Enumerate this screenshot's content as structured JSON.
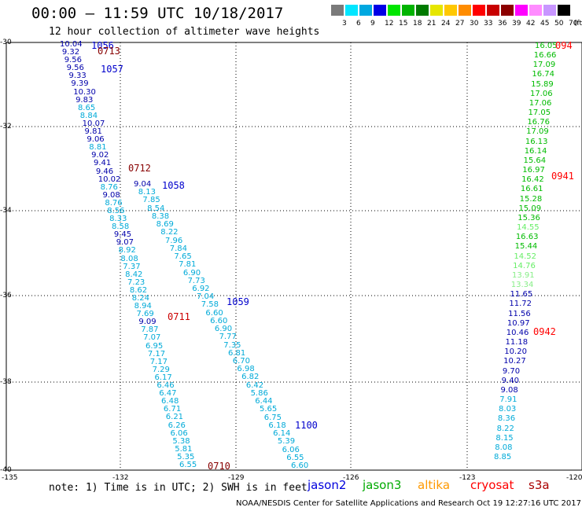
{
  "title": "00:00 – 11:59 UTC 10/18/2017",
  "subtitle": "12 hour collection of altimeter wave heights",
  "legend": {
    "unit": "(ft)",
    "bins": [
      {
        "label": "3",
        "color": "#7a7a7a"
      },
      {
        "label": "6",
        "color": "#00e6ff"
      },
      {
        "label": "9",
        "color": "#00a8e0"
      },
      {
        "label": "12",
        "color": "#0000e6"
      },
      {
        "label": "15",
        "color": "#00e600"
      },
      {
        "label": "18",
        "color": "#00b400"
      },
      {
        "label": "21",
        "color": "#007a00"
      },
      {
        "label": "24",
        "color": "#e6e600"
      },
      {
        "label": "27",
        "color": "#ffc800"
      },
      {
        "label": "30",
        "color": "#ff8c00"
      },
      {
        "label": "33",
        "color": "#ff0000"
      },
      {
        "label": "36",
        "color": "#c80000"
      },
      {
        "label": "39",
        "color": "#8c0000"
      },
      {
        "label": "42",
        "color": "#ff00ff"
      },
      {
        "label": "45",
        "color": "#ff8cff"
      },
      {
        "label": "50",
        "color": "#c896ff"
      },
      {
        "label": "70",
        "color": "#000000"
      }
    ]
  },
  "axes": {
    "lat_ticks": [
      "-30",
      "-32",
      "-34",
      "-36",
      "-38",
      "-40"
    ],
    "lon_ticks": [
      "-135",
      "-132",
      "-129",
      "-126",
      "-123",
      "-120"
    ]
  },
  "note": "note: 1) Time is in UTC; 2) SWH is in feet",
  "satellites": [
    {
      "name": "jason2",
      "color": "#0000dd"
    },
    {
      "name": "jason3",
      "color": "#00aa00"
    },
    {
      "name": "altika",
      "color": "#ff9900"
    },
    {
      "name": "cryosat",
      "color": "#ff0000"
    },
    {
      "name": "s3a",
      "color": "#aa0000"
    }
  ],
  "footer": "NOAA/NESDIS Center for Satellite Applications and Research   Oct 19 12:27:16 UTC 2017",
  "passes": [
    {
      "label": "1056",
      "color": "#0000cc"
    },
    {
      "label": "0713",
      "color": "#880000"
    },
    {
      "label": "1057",
      "color": "#0000cc"
    },
    {
      "label": "0712",
      "color": "#880000"
    },
    {
      "label": "1058",
      "color": "#0000cc"
    },
    {
      "label": "1059",
      "color": "#0000cc"
    },
    {
      "label": "0711",
      "color": "#cc0000"
    },
    {
      "label": "1100",
      "color": "#0000cc"
    },
    {
      "label": "0710",
      "color": "#880000"
    },
    {
      "label": "094",
      "color": "#ff0000"
    },
    {
      "label": "0941",
      "color": "#ff0000"
    },
    {
      "label": "0942",
      "color": "#ff0000"
    }
  ],
  "track_a": [
    {
      "v": "10.04",
      "c": "#0000aa"
    },
    {
      "v": "9.32",
      "c": "#0000aa"
    },
    {
      "v": "9.56",
      "c": "#0000aa"
    },
    {
      "v": "9.56",
      "c": "#0000aa"
    },
    {
      "v": "9.33",
      "c": "#0000aa"
    },
    {
      "v": "9.39",
      "c": "#0000aa"
    },
    {
      "v": "10.30",
      "c": "#0000aa"
    },
    {
      "v": "9.83",
      "c": "#0000aa"
    },
    {
      "v": "8.65",
      "c": "#00aad8"
    },
    {
      "v": "8.84",
      "c": "#00aad8"
    },
    {
      "v": "10.07",
      "c": "#0000aa"
    },
    {
      "v": "9.81",
      "c": "#0000aa"
    },
    {
      "v": "9.06",
      "c": "#0000aa"
    },
    {
      "v": "8.81",
      "c": "#00aad8"
    },
    {
      "v": "9.02",
      "c": "#0000aa"
    },
    {
      "v": "9.41",
      "c": "#0000aa"
    },
    {
      "v": "9.46",
      "c": "#0000aa"
    },
    {
      "v": "10.02",
      "c": "#0000aa"
    },
    {
      "v": "8.76",
      "c": "#00aad8"
    },
    {
      "v": "9.08",
      "c": "#0000aa"
    },
    {
      "v": "8.76",
      "c": "#00aad8"
    },
    {
      "v": "8.56",
      "c": "#00aad8"
    },
    {
      "v": "8.33",
      "c": "#00aad8"
    },
    {
      "v": "8.58",
      "c": "#00aad8"
    },
    {
      "v": "9.45",
      "c": "#0000aa"
    },
    {
      "v": "9.07",
      "c": "#0000aa"
    },
    {
      "v": "8.92",
      "c": "#00aad8"
    },
    {
      "v": "8.08",
      "c": "#00aad8"
    },
    {
      "v": "7.37",
      "c": "#00aad8"
    },
    {
      "v": "8.42",
      "c": "#00aad8"
    },
    {
      "v": "7.23",
      "c": "#00aad8"
    },
    {
      "v": "8.62",
      "c": "#00aad8"
    },
    {
      "v": "8.24",
      "c": "#00aad8"
    },
    {
      "v": "8.94",
      "c": "#00aad8"
    },
    {
      "v": "7.69",
      "c": "#00aad8"
    },
    {
      "v": "9.09",
      "c": "#0000aa"
    },
    {
      "v": "7.87",
      "c": "#00aad8"
    },
    {
      "v": "7.07",
      "c": "#00aad8"
    },
    {
      "v": "6.95",
      "c": "#00aad8"
    },
    {
      "v": "7.17",
      "c": "#00aad8"
    },
    {
      "v": "7.17",
      "c": "#00aad8"
    },
    {
      "v": "7.29",
      "c": "#00aad8"
    },
    {
      "v": "6.17",
      "c": "#00aad8"
    },
    {
      "v": "6.46",
      "c": "#00aad8"
    },
    {
      "v": "6.47",
      "c": "#00aad8"
    },
    {
      "v": "6.48",
      "c": "#00aad8"
    },
    {
      "v": "6.71",
      "c": "#00aad8"
    },
    {
      "v": "6.21",
      "c": "#00aad8"
    },
    {
      "v": "6.26",
      "c": "#00aad8"
    },
    {
      "v": "6.06",
      "c": "#00aad8"
    },
    {
      "v": "5.38",
      "c": "#00aad8"
    },
    {
      "v": "5.81",
      "c": "#00aad8"
    },
    {
      "v": "5.35",
      "c": "#00aad8"
    },
    {
      "v": "6.55",
      "c": "#00aad8"
    }
  ],
  "track_b": [
    {
      "v": "9.04",
      "c": "#0000aa"
    },
    {
      "v": "8.13",
      "c": "#00aad8"
    },
    {
      "v": "7.85",
      "c": "#00aad8"
    },
    {
      "v": "8.54",
      "c": "#00aad8"
    },
    {
      "v": "8.38",
      "c": "#00aad8"
    },
    {
      "v": "8.69",
      "c": "#00aad8"
    },
    {
      "v": "8.22",
      "c": "#00aad8"
    },
    {
      "v": "7.96",
      "c": "#00aad8"
    },
    {
      "v": "7.84",
      "c": "#00aad8"
    },
    {
      "v": "7.65",
      "c": "#00aad8"
    },
    {
      "v": "7.81",
      "c": "#00aad8"
    },
    {
      "v": "6.90",
      "c": "#00aad8"
    },
    {
      "v": "7.73",
      "c": "#00aad8"
    },
    {
      "v": "6.92",
      "c": "#00aad8"
    },
    {
      "v": "7.04",
      "c": "#00aad8"
    },
    {
      "v": "7.58",
      "c": "#00aad8"
    },
    {
      "v": "6.60",
      "c": "#00aad8"
    },
    {
      "v": "6.60",
      "c": "#00aad8"
    },
    {
      "v": "6.90",
      "c": "#00aad8"
    },
    {
      "v": "7.77",
      "c": "#00aad8"
    },
    {
      "v": "7.35",
      "c": "#00aad8"
    },
    {
      "v": "6.81",
      "c": "#00aad8"
    },
    {
      "v": "6.70",
      "c": "#00aad8"
    },
    {
      "v": "6.98",
      "c": "#00aad8"
    },
    {
      "v": "6.82",
      "c": "#00aad8"
    },
    {
      "v": "6.42",
      "c": "#00aad8"
    },
    {
      "v": "5.86",
      "c": "#00aad8"
    },
    {
      "v": "6.44",
      "c": "#00aad8"
    },
    {
      "v": "5.65",
      "c": "#00aad8"
    },
    {
      "v": "6.75",
      "c": "#00aad8"
    },
    {
      "v": "6.18",
      "c": "#00aad8"
    },
    {
      "v": "6.14",
      "c": "#00aad8"
    },
    {
      "v": "5.39",
      "c": "#00aad8"
    },
    {
      "v": "6.06",
      "c": "#00aad8"
    },
    {
      "v": "6.55",
      "c": "#00aad8"
    },
    {
      "v": "6.60",
      "c": "#00aad8"
    }
  ],
  "track_c": [
    {
      "v": "16.05",
      "c": "#00bb00"
    },
    {
      "v": "16.66",
      "c": "#00bb00"
    },
    {
      "v": "17.09",
      "c": "#00bb00"
    },
    {
      "v": "16.74",
      "c": "#00bb00"
    },
    {
      "v": "15.89",
      "c": "#00bb00"
    },
    {
      "v": "17.06",
      "c": "#00bb00"
    },
    {
      "v": "17.06",
      "c": "#00bb00"
    },
    {
      "v": "17.05",
      "c": "#00bb00"
    },
    {
      "v": "16.76",
      "c": "#00bb00"
    },
    {
      "v": "17.09",
      "c": "#00bb00"
    },
    {
      "v": "16.13",
      "c": "#00bb00"
    },
    {
      "v": "16.14",
      "c": "#00bb00"
    },
    {
      "v": "15.64",
      "c": "#00bb00"
    },
    {
      "v": "16.97",
      "c": "#00bb00"
    },
    {
      "v": "16.42",
      "c": "#00bb00"
    },
    {
      "v": "16.61",
      "c": "#00bb00"
    },
    {
      "v": "15.28",
      "c": "#00bb00"
    },
    {
      "v": "15.09",
      "c": "#00bb00"
    },
    {
      "v": "15.36",
      "c": "#00bb00"
    },
    {
      "v": "14.55",
      "c": "#66ee66"
    },
    {
      "v": "16.63",
      "c": "#00bb00"
    },
    {
      "v": "15.44",
      "c": "#00bb00"
    },
    {
      "v": "14.52",
      "c": "#66ee66"
    },
    {
      "v": "14.76",
      "c": "#66ee66"
    },
    {
      "v": "13.91",
      "c": "#88ee88"
    },
    {
      "v": "13.34",
      "c": "#88ee88"
    },
    {
      "v": "11.65",
      "c": "#0000aa"
    },
    {
      "v": "11.72",
      "c": "#0000aa"
    },
    {
      "v": "11.56",
      "c": "#0000aa"
    },
    {
      "v": "10.97",
      "c": "#0000aa"
    },
    {
      "v": "10.46",
      "c": "#0000aa"
    },
    {
      "v": "11.18",
      "c": "#0000aa"
    },
    {
      "v": "10.20",
      "c": "#0000aa"
    },
    {
      "v": "10.27",
      "c": "#0000aa"
    },
    {
      "v": "9.70",
      "c": "#0000aa"
    },
    {
      "v": "9.40",
      "c": "#0000aa"
    },
    {
      "v": "9.08",
      "c": "#0000aa"
    },
    {
      "v": "7.91",
      "c": "#00aad8"
    },
    {
      "v": "8.03",
      "c": "#00aad8"
    },
    {
      "v": "8.36",
      "c": "#00aad8"
    },
    {
      "v": "8.22",
      "c": "#00aad8"
    },
    {
      "v": "8.15",
      "c": "#00aad8"
    },
    {
      "v": "8.08",
      "c": "#00aad8"
    },
    {
      "v": "8.85",
      "c": "#00aad8"
    }
  ]
}
